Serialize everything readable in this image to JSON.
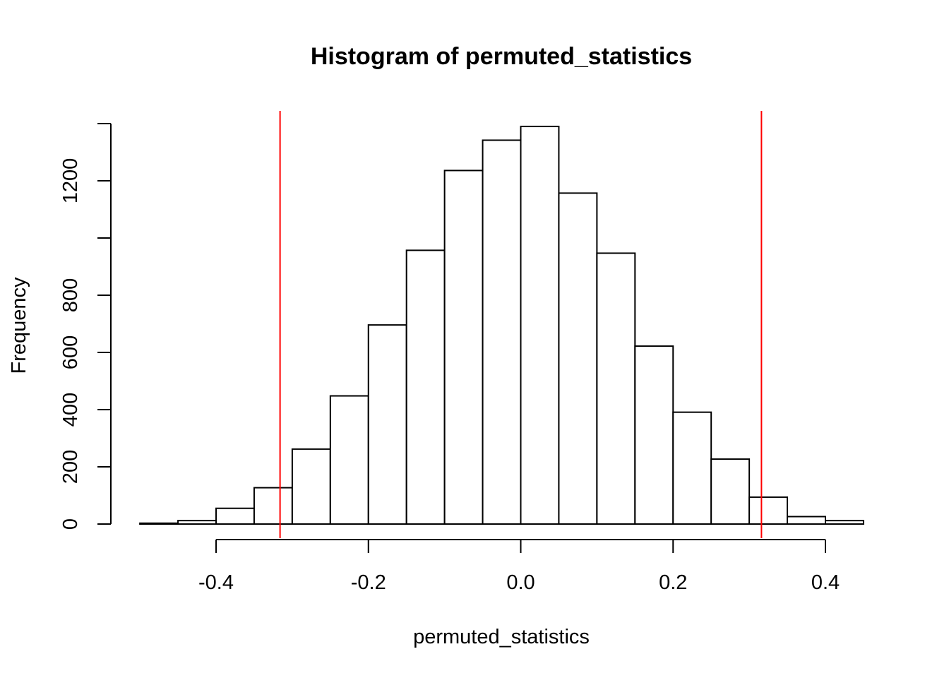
{
  "chart_data": {
    "type": "bar",
    "title": "Histogram of permuted_statistics",
    "xlabel": "permuted_statistics",
    "ylabel": "Frequency",
    "bin_edges": [
      -0.5,
      -0.45,
      -0.4,
      -0.35,
      -0.3,
      -0.25,
      -0.2,
      -0.15,
      -0.1,
      -0.05,
      0.0,
      0.05,
      0.1,
      0.15,
      0.2,
      0.25,
      0.3,
      0.35,
      0.4,
      0.45
    ],
    "values": [
      3,
      12,
      55,
      127,
      262,
      448,
      696,
      957,
      1236,
      1342,
      1390,
      1157,
      947,
      622,
      391,
      227,
      94,
      26,
      12
    ],
    "xlim": [
      -0.5,
      0.45
    ],
    "ylim": [
      0,
      1400
    ],
    "x_ticks": [
      -0.4,
      -0.2,
      0.0,
      0.2,
      0.4
    ],
    "x_tick_labels": [
      "-0.4",
      "-0.2",
      "0.0",
      "0.2",
      "0.4"
    ],
    "y_ticks": [
      0,
      200,
      400,
      600,
      800,
      1000,
      1200,
      1400
    ],
    "y_tick_labels": [
      "0",
      "200",
      "400",
      "600",
      "800",
      "",
      "1200",
      ""
    ],
    "vlines": [
      -0.316,
      0.316
    ],
    "vline_color": "#ff0000",
    "bar_fill": "#ffffff",
    "bar_stroke": "#000000",
    "grid": false
  }
}
